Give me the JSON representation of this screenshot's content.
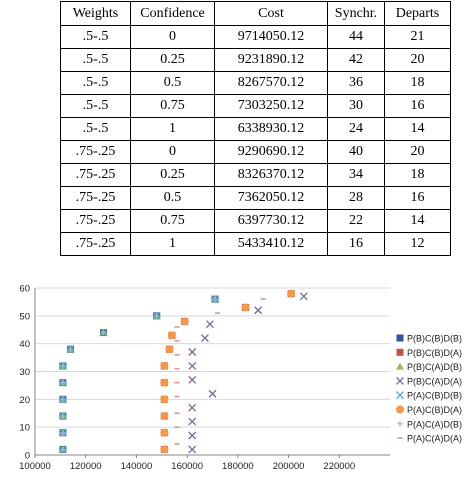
{
  "table": {
    "headers": [
      "Weights",
      "Confidence",
      "Cost",
      "Synchr.",
      "Departs"
    ],
    "rows": [
      [
        ".5-.5",
        "0",
        "9714050.12",
        "44",
        "21"
      ],
      [
        ".5-.5",
        "0.25",
        "9231890.12",
        "42",
        "20"
      ],
      [
        ".5-.5",
        "0.5",
        "8267570.12",
        "36",
        "18"
      ],
      [
        ".5-.5",
        "0.75",
        "7303250.12",
        "30",
        "16"
      ],
      [
        ".5-.5",
        "1",
        "6338930.12",
        "24",
        "14"
      ],
      [
        ".75-.25",
        "0",
        "9290690.12",
        "40",
        "20"
      ],
      [
        ".75-.25",
        "0.25",
        "8326370.12",
        "34",
        "18"
      ],
      [
        ".75-.25",
        "0.5",
        "7362050.12",
        "28",
        "16"
      ],
      [
        ".75-.25",
        "0.75",
        "6397730.12",
        "22",
        "14"
      ],
      [
        ".75-.25",
        "1",
        "5433410.12",
        "16",
        "12"
      ]
    ]
  },
  "chart_data": {
    "type": "scatter",
    "title": "",
    "xlabel": "",
    "ylabel": "",
    "xlim": [
      100000,
      240000
    ],
    "ylim": [
      0,
      60
    ],
    "xticks": [
      100000,
      120000,
      140000,
      160000,
      180000,
      200000,
      220000
    ],
    "yticks": [
      0,
      10,
      20,
      30,
      40,
      50,
      60
    ],
    "grid": "horizontal",
    "legend_position": "right",
    "series": [
      {
        "name": "P(B)C(B)D(B)",
        "marker": "square",
        "color": "#2f5597",
        "points": [
          [
            111000,
            2
          ],
          [
            111000,
            8
          ],
          [
            111000,
            14
          ],
          [
            111000,
            20
          ],
          [
            111000,
            26
          ],
          [
            111000,
            32
          ],
          [
            114000,
            38
          ],
          [
            127000,
            44
          ],
          [
            148000,
            50
          ],
          [
            171000,
            56
          ]
        ]
      },
      {
        "name": "P(B)C(B)D(A)",
        "marker": "square",
        "color": "#c0504d",
        "points": [
          [
            151000,
            2
          ],
          [
            151000,
            8
          ],
          [
            151000,
            14
          ],
          [
            151000,
            20
          ],
          [
            151000,
            26
          ],
          [
            151000,
            32
          ],
          [
            153000,
            38
          ],
          [
            154000,
            43
          ],
          [
            159000,
            48
          ],
          [
            183000,
            53
          ],
          [
            201000,
            58
          ]
        ]
      },
      {
        "name": "P(B)C(A)D(B)",
        "marker": "triangle",
        "color": "#9bbb59",
        "points": [
          [
            111000,
            2
          ],
          [
            111000,
            8
          ],
          [
            111000,
            14
          ],
          [
            111000,
            20
          ],
          [
            111000,
            26
          ],
          [
            111000,
            32
          ],
          [
            114000,
            38
          ],
          [
            127000,
            44
          ],
          [
            148000,
            50
          ],
          [
            171000,
            56
          ]
        ]
      },
      {
        "name": "P(B)C(A)D(A)",
        "marker": "x",
        "color": "#8064a2",
        "points": [
          [
            162000,
            2
          ],
          [
            162000,
            7
          ],
          [
            162000,
            12
          ],
          [
            162000,
            17
          ],
          [
            170000,
            22
          ],
          [
            162000,
            27
          ],
          [
            162000,
            32
          ],
          [
            162000,
            37
          ],
          [
            167000,
            42
          ],
          [
            169000,
            47
          ],
          [
            188000,
            52
          ],
          [
            206000,
            57
          ]
        ]
      },
      {
        "name": "P(A)C(B)D(B)",
        "marker": "x",
        "color": "#4bacc6",
        "points": [
          [
            111000,
            2
          ],
          [
            111000,
            8
          ],
          [
            111000,
            14
          ],
          [
            111000,
            20
          ],
          [
            111000,
            26
          ],
          [
            111000,
            32
          ],
          [
            114000,
            38
          ],
          [
            127000,
            44
          ],
          [
            148000,
            50
          ],
          [
            171000,
            56
          ]
        ]
      },
      {
        "name": "P(A)C(B)D(A)",
        "marker": "circle",
        "color": "#f79646",
        "points": [
          [
            151000,
            2
          ],
          [
            151000,
            8
          ],
          [
            151000,
            14
          ],
          [
            151000,
            20
          ],
          [
            151000,
            26
          ],
          [
            151000,
            32
          ],
          [
            153000,
            38
          ],
          [
            154000,
            43
          ],
          [
            159000,
            48
          ],
          [
            183000,
            53
          ],
          [
            201000,
            58
          ]
        ]
      },
      {
        "name": "P(A)C(A)D(B)",
        "marker": "plus",
        "color": "#9eb4d8",
        "points": [
          [
            111000,
            2
          ],
          [
            111000,
            8
          ],
          [
            111000,
            14
          ],
          [
            111000,
            20
          ],
          [
            111000,
            26
          ],
          [
            111000,
            32
          ],
          [
            114000,
            38
          ],
          [
            127000,
            44
          ],
          [
            148000,
            50
          ],
          [
            171000,
            56
          ]
        ]
      },
      {
        "name": "P(A)C(A)D(A)",
        "marker": "dash",
        "color": "#d99694",
        "points": [
          [
            156000,
            4
          ],
          [
            156000,
            10
          ],
          [
            156000,
            15
          ],
          [
            156000,
            21
          ],
          [
            156000,
            26
          ],
          [
            156000,
            31
          ],
          [
            156000,
            36
          ],
          [
            156000,
            41
          ],
          [
            156000,
            46
          ],
          [
            172000,
            51
          ],
          [
            190000,
            56
          ]
        ]
      }
    ]
  }
}
